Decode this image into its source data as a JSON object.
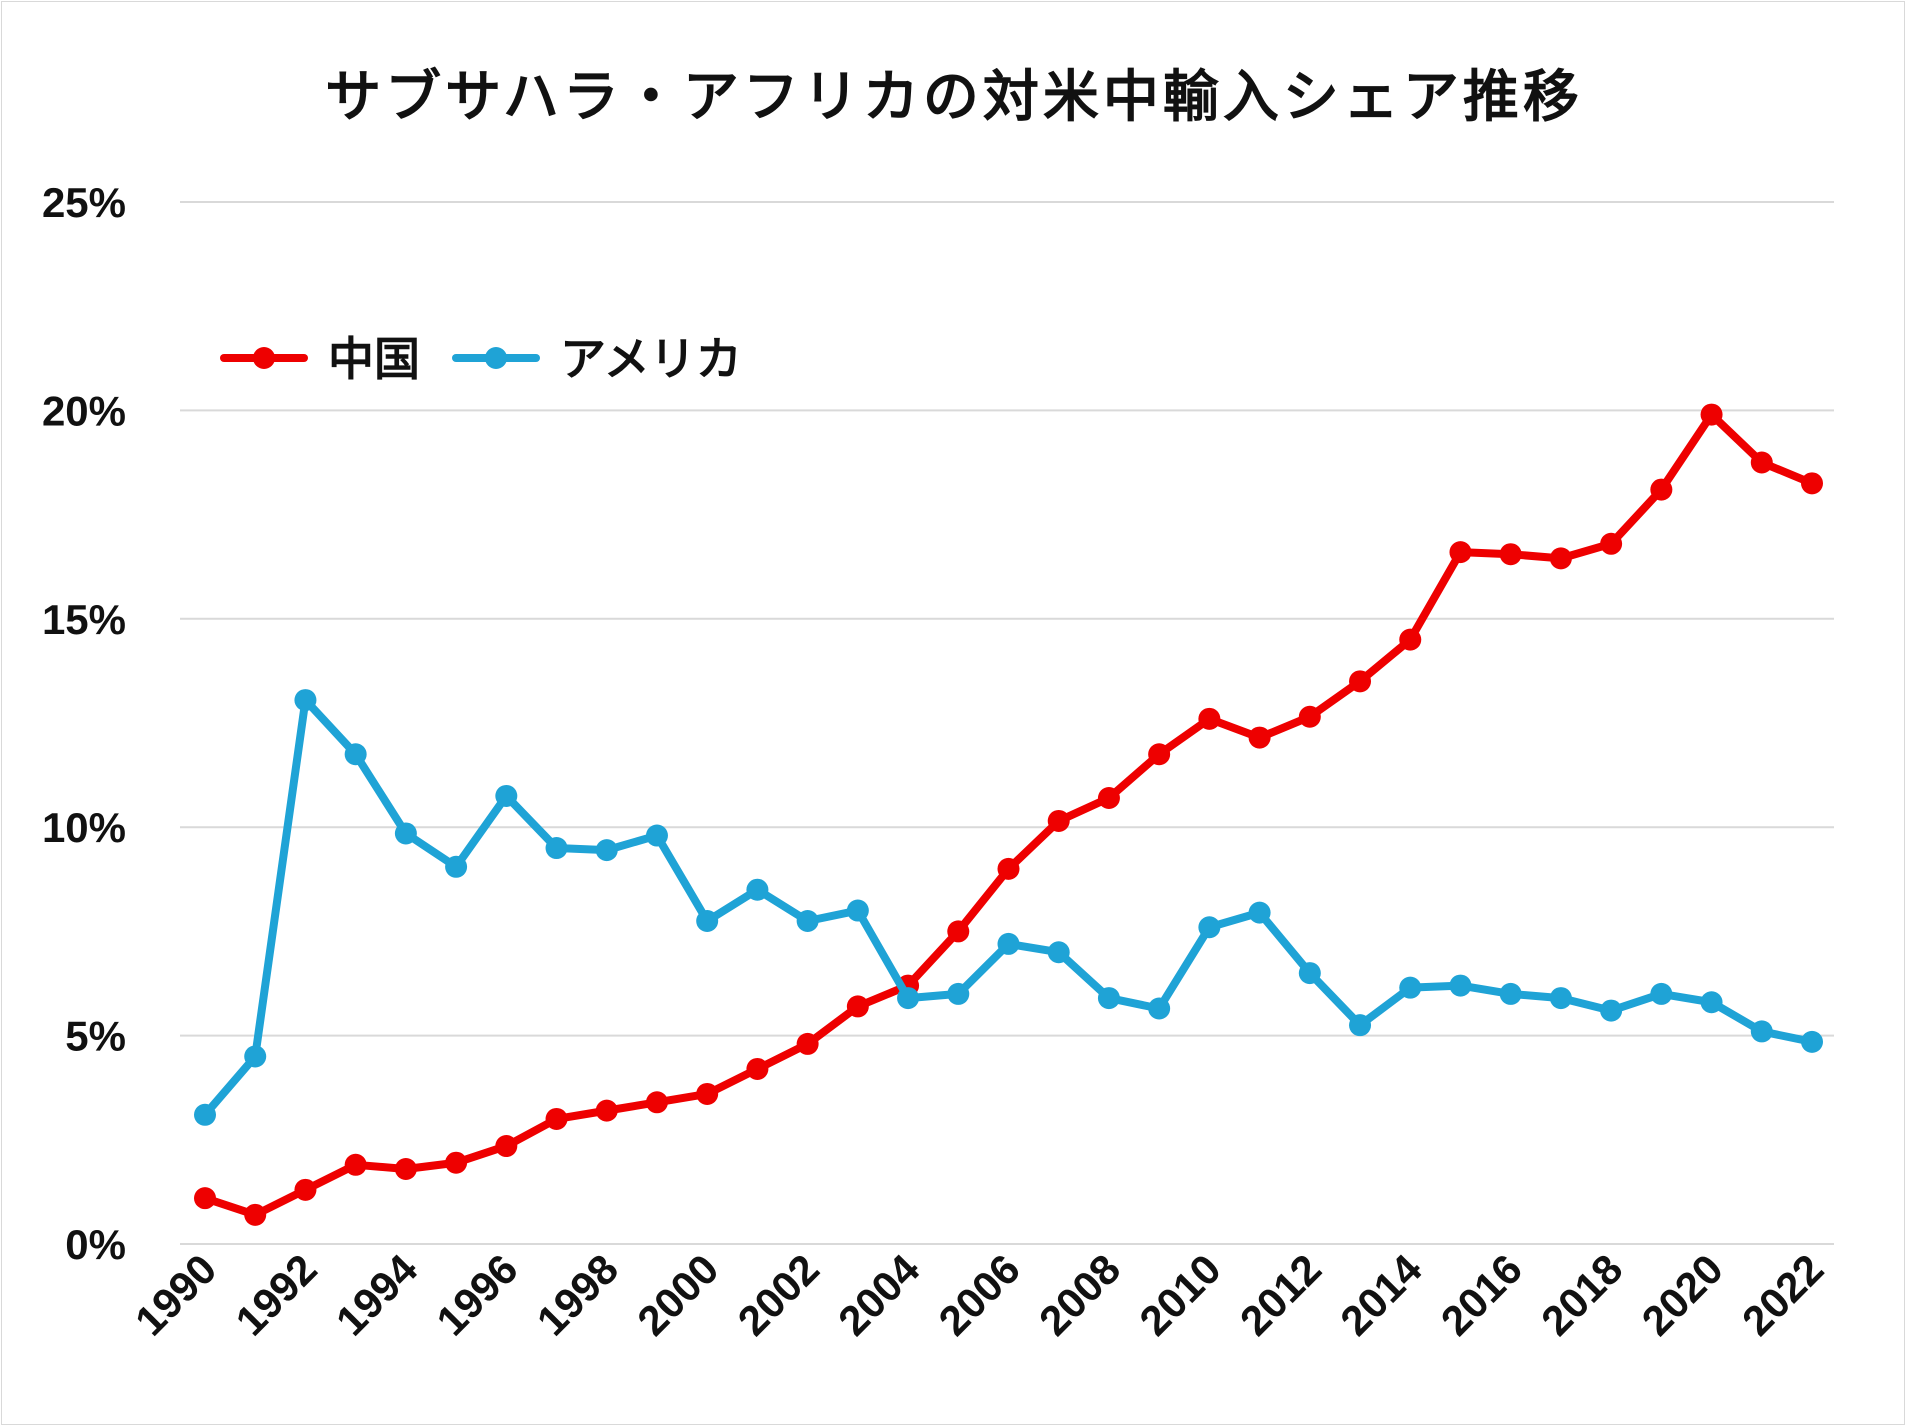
{
  "chart_data": {
    "type": "line",
    "title": "サブサハラ・アフリカの対米中輸入シェア推移",
    "x": [
      1990,
      1991,
      1992,
      1993,
      1994,
      1995,
      1996,
      1997,
      1998,
      1999,
      2000,
      2001,
      2002,
      2003,
      2004,
      2005,
      2006,
      2007,
      2008,
      2009,
      2010,
      2011,
      2012,
      2013,
      2014,
      2015,
      2016,
      2017,
      2018,
      2019,
      2020,
      2021,
      2022
    ],
    "x_tick_labels": [
      "1990",
      "1992",
      "1994",
      "1996",
      "1998",
      "2000",
      "2002",
      "2004",
      "2006",
      "2008",
      "2010",
      "2012",
      "2014",
      "2016",
      "2018",
      "2020",
      "2022"
    ],
    "y_tick_labels": [
      "0%",
      "5%",
      "10%",
      "15%",
      "20%",
      "25%"
    ],
    "ylim": [
      0,
      25
    ],
    "y_unit": "%",
    "grid": "horizontal",
    "legend_position": "top-left",
    "series": [
      {
        "name": "中国",
        "color": "#ee0000",
        "values": [
          1.1,
          0.7,
          1.3,
          1.9,
          1.8,
          1.95,
          2.35,
          3.0,
          3.2,
          3.4,
          3.6,
          4.2,
          4.8,
          5.7,
          6.2,
          7.5,
          9.0,
          10.15,
          10.7,
          11.75,
          12.6,
          12.15,
          12.65,
          13.5,
          14.5,
          16.6,
          16.55,
          16.45,
          16.8,
          18.1,
          19.9,
          18.75,
          18.25
        ]
      },
      {
        "name": "アメリカ",
        "color": "#1fa3d6",
        "values": [
          3.1,
          4.5,
          13.05,
          11.75,
          9.85,
          9.05,
          10.75,
          9.5,
          9.45,
          9.8,
          7.75,
          8.5,
          7.75,
          8.0,
          5.9,
          6.0,
          7.2,
          7.0,
          5.9,
          5.65,
          7.6,
          7.95,
          6.5,
          5.25,
          6.15,
          6.2,
          6.0,
          5.9,
          5.6,
          6.0,
          5.8,
          5.1,
          4.85
        ]
      }
    ]
  }
}
